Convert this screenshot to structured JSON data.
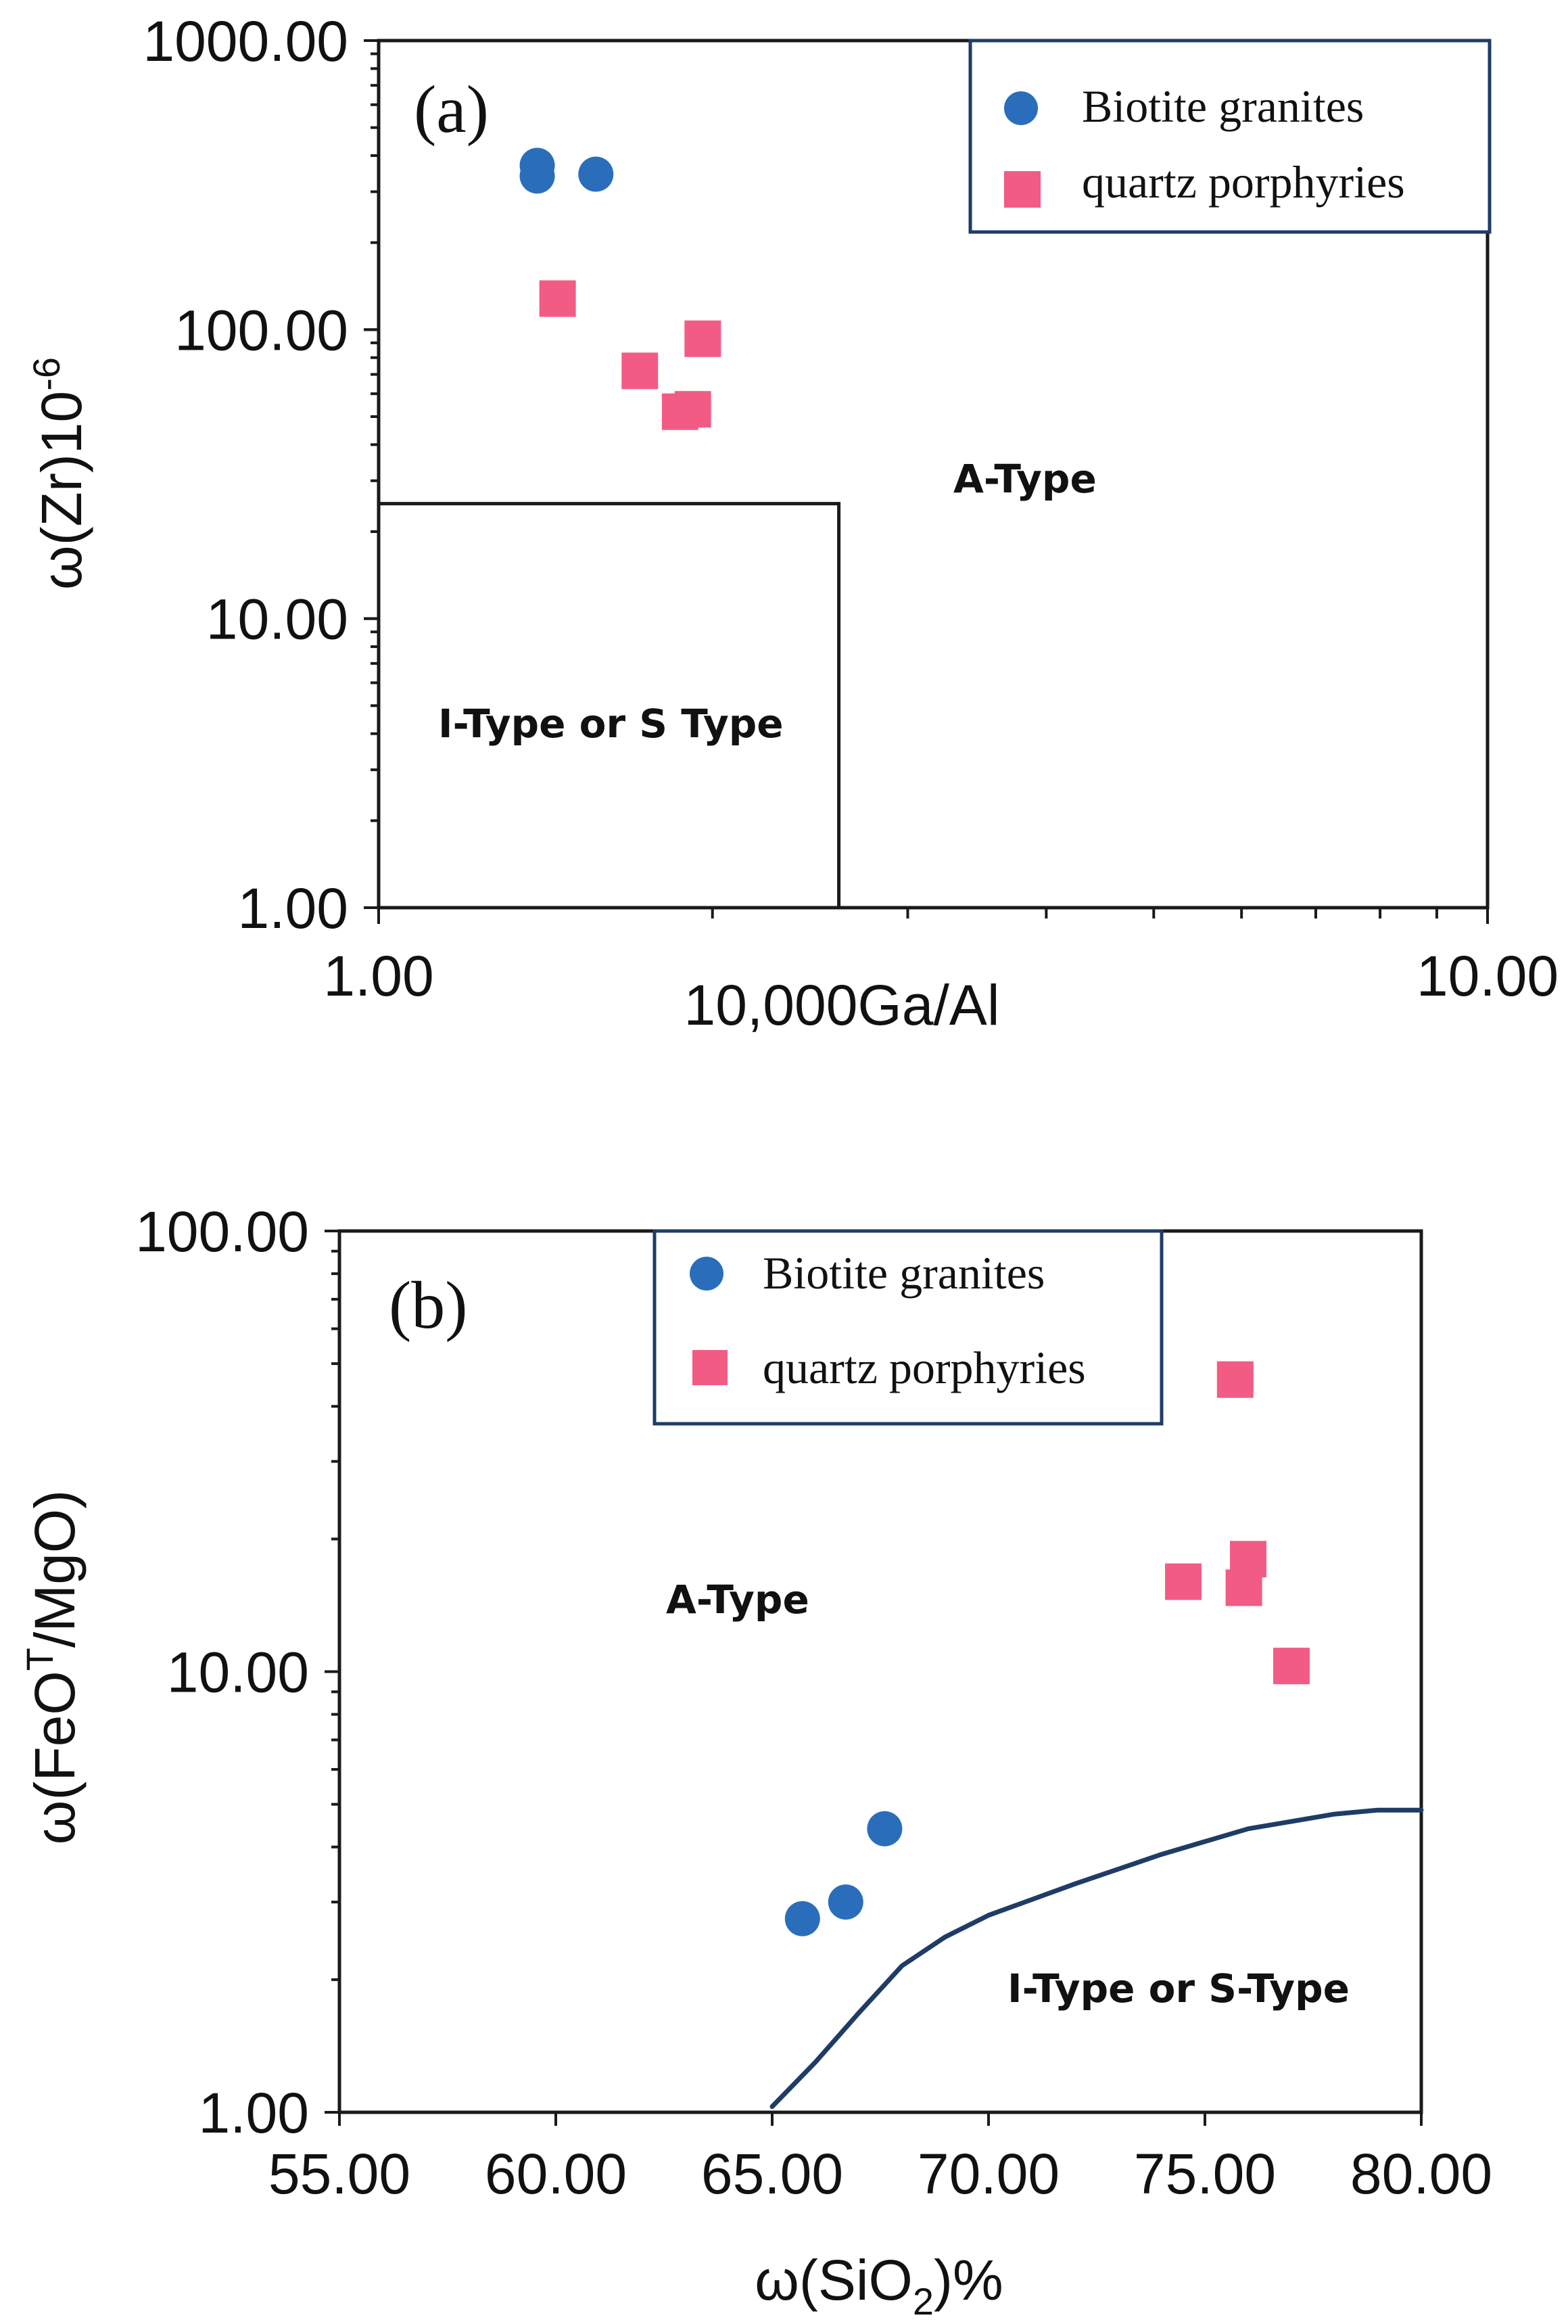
{
  "chart_data": [
    {
      "type": "scatter",
      "panel_label": "(a)",
      "xlabel": "10,000Ga/Al",
      "ylabel": "ω(Zr)10",
      "ylabel_sup": "-6",
      "xscale": "log",
      "yscale": "log",
      "xlim": [
        1,
        10
      ],
      "ylim": [
        1,
        1000
      ],
      "x_tick_labels": [
        "1.00",
        "10.00"
      ],
      "y_tick_labels": [
        "1.00",
        "10.00",
        "100.00",
        "1000.00"
      ],
      "legend_position": "top-right",
      "series": [
        {
          "name": "Biotite granites",
          "marker": "circle",
          "color": "#2A6EBB",
          "points": [
            [
              1.39,
              370
            ],
            [
              1.39,
              340
            ],
            [
              1.57,
              345
            ]
          ]
        },
        {
          "name": "quartz porphyries",
          "marker": "square",
          "color": "#F25C84",
          "points": [
            [
              1.45,
              128
            ],
            [
              1.72,
              72
            ],
            [
              1.96,
              93
            ],
            [
              1.87,
              52
            ],
            [
              1.92,
              53
            ]
          ]
        }
      ],
      "region_boundaries": [
        {
          "name": "I/S-A boundary",
          "points": [
            [
              1,
              25
            ],
            [
              2.6,
              25
            ],
            [
              2.6,
              1
            ]
          ]
        }
      ],
      "regions": [
        {
          "label": "A-Type",
          "at": [
            3.9,
            38
          ]
        },
        {
          "label": "I-Type or S Type",
          "at": [
            1.65,
            4.5
          ]
        }
      ]
    },
    {
      "type": "scatter",
      "panel_label": "(b)",
      "xlabel": "ω(SiO",
      "xlabel_sub": "2",
      "xlabel_tail": ")%",
      "ylabel": "ω(FeO",
      "ylabel_sup": "T",
      "ylabel_tail": "/MgO)",
      "xscale": "linear",
      "yscale": "log",
      "xlim": [
        55,
        80
      ],
      "ylim": [
        1,
        100
      ],
      "x_ticks": [
        55,
        60,
        65,
        70,
        75,
        80
      ],
      "x_tick_labels": [
        "55.00",
        "60.00",
        "65.00",
        "70.00",
        "75.00",
        "80.00"
      ],
      "y_tick_labels": [
        "1.00",
        "10.00",
        "100.00"
      ],
      "legend_position": "top-center",
      "series": [
        {
          "name": "Biotite granites",
          "marker": "circle",
          "color": "#2A6EBB",
          "points": [
            [
              65.7,
              2.75
            ],
            [
              66.7,
              3.0
            ],
            [
              67.6,
              4.4
            ]
          ]
        },
        {
          "name": "quartz porphyries",
          "marker": "square",
          "color": "#F25C84",
          "points": [
            [
              75.7,
              46
            ],
            [
              74.5,
              16
            ],
            [
              75.9,
              15.5
            ],
            [
              76.0,
              18
            ],
            [
              77.0,
              10.3
            ]
          ]
        }
      ],
      "boundary_curve": {
        "color": "#1F3C66",
        "points": [
          [
            65,
            1.03
          ],
          [
            66,
            1.3
          ],
          [
            67,
            1.68
          ],
          [
            68,
            2.15
          ],
          [
            69,
            2.5
          ],
          [
            70,
            2.8
          ],
          [
            72,
            3.3
          ],
          [
            74,
            3.85
          ],
          [
            76,
            4.4
          ],
          [
            78,
            4.75
          ],
          [
            79,
            4.85
          ],
          [
            80,
            4.85
          ]
        ]
      },
      "regions": [
        {
          "label": "A-Type",
          "at": [
            64.5,
            8
          ]
        },
        {
          "label": "I-Type or S-Type",
          "at": [
            76.5,
            1.9
          ]
        }
      ]
    }
  ]
}
